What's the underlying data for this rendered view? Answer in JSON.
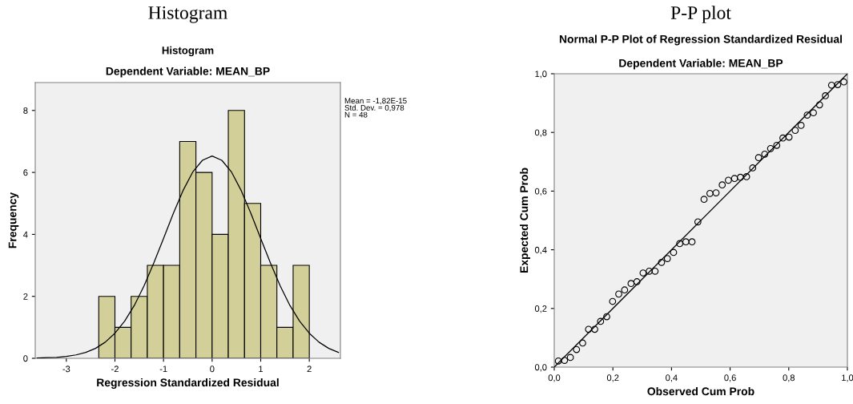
{
  "chart_data": [
    {
      "type": "histogram",
      "title": "Histogram",
      "subtitle": "Dependent Variable: MEAN_BP",
      "xlabel": "Regression Standardized Residual",
      "ylabel": "Frequency",
      "annotations": [
        "Histogram",
        "Mean = -1,82E-15\nStd. Dev. = 0,978\nN = 48"
      ],
      "bins": [
        -2.333,
        -2,
        -1.667,
        -1.333,
        -1,
        -0.667,
        -0.333,
        0,
        0.333,
        0.667,
        1,
        1.333,
        1.667,
        2
      ],
      "values": [
        2,
        1,
        2,
        3,
        3,
        7,
        6,
        4,
        8,
        5,
        3,
        1,
        3
      ],
      "color": "#d3cf99",
      "series": [
        {
          "type": "line",
          "color": "#000000",
          "marker": "none",
          "x": [
            -3.6,
            -3.4,
            -3.2,
            -3.0,
            -2.8,
            -2.6,
            -2.4,
            -2.2,
            -2.0,
            -1.8,
            -1.6,
            -1.4,
            -1.2,
            -1.0,
            -0.8,
            -0.6,
            -0.4,
            -0.2,
            0,
            0.2,
            0.4,
            0.6,
            0.8,
            1.0,
            1.2,
            1.4,
            1.6,
            1.8,
            2.0,
            2.2,
            2.4,
            2.6
          ],
          "values": [
            0.01,
            0.02,
            0.03,
            0.06,
            0.11,
            0.19,
            0.32,
            0.52,
            0.81,
            1.2,
            1.71,
            2.34,
            3.08,
            3.87,
            4.67,
            5.41,
            6.01,
            6.39,
            6.53,
            6.39,
            6.01,
            5.41,
            4.67,
            3.87,
            3.08,
            2.34,
            1.71,
            1.2,
            0.81,
            0.52,
            0.32,
            0.19
          ]
        }
      ],
      "xlim": [
        -3.64,
        2.64
      ],
      "ylim": [
        0,
        8.9
      ],
      "xticks": [
        {
          "value": -3,
          "label": "-3"
        },
        {
          "value": -2,
          "label": "-2"
        },
        {
          "value": -1,
          "label": "-1"
        },
        0,
        1,
        2
      ],
      "yticks": [
        0,
        2,
        4,
        6,
        8
      ],
      "grid": false
    },
    {
      "type": "scatter",
      "title": "Normal P-P Plot of Regression Standardized Residual",
      "subtitle": "Dependent Variable: MEAN_BP",
      "xlabel": "Observed Cum Prob",
      "ylabel": "Expected Cum Prob",
      "annotations": [
        "P-P plot"
      ],
      "marker": "circle",
      "color": "#000000",
      "x": [
        0.014,
        0.035,
        0.055,
        0.076,
        0.097,
        0.117,
        0.138,
        0.158,
        0.179,
        0.199,
        0.22,
        0.24,
        0.262,
        0.282,
        0.303,
        0.324,
        0.344,
        0.366,
        0.386,
        0.407,
        0.428,
        0.449,
        0.47,
        0.49,
        0.511,
        0.531,
        0.552,
        0.573,
        0.594,
        0.615,
        0.635,
        0.656,
        0.677,
        0.697,
        0.718,
        0.738,
        0.759,
        0.78,
        0.801,
        0.822,
        0.842,
        0.863,
        0.884,
        0.905,
        0.925,
        0.946,
        0.967,
        0.988
      ],
      "values": [
        0.021,
        0.023,
        0.033,
        0.06,
        0.082,
        0.129,
        0.129,
        0.156,
        0.172,
        0.224,
        0.249,
        0.263,
        0.285,
        0.291,
        0.321,
        0.327,
        0.327,
        0.357,
        0.37,
        0.391,
        0.421,
        0.427,
        0.427,
        0.495,
        0.572,
        0.592,
        0.594,
        0.621,
        0.637,
        0.643,
        0.647,
        0.649,
        0.679,
        0.714,
        0.726,
        0.745,
        0.756,
        0.781,
        0.784,
        0.807,
        0.824,
        0.859,
        0.867,
        0.894,
        0.925,
        0.961,
        0.963,
        0.972
      ],
      "series": [
        {
          "type": "line",
          "color": "#000000",
          "marker": "none",
          "x": [
            0,
            1
          ],
          "values": [
            0,
            1
          ]
        }
      ],
      "xlim": [
        0,
        1
      ],
      "ylim": [
        0,
        1
      ],
      "xticks": [
        {
          "value": 0,
          "label": "0,0"
        },
        {
          "value": 0.2,
          "label": "0,2"
        },
        {
          "value": 0.4,
          "label": "0,4"
        },
        {
          "value": 0.6,
          "label": "0,6"
        },
        {
          "value": 0.8,
          "label": "0,8"
        },
        {
          "value": 1,
          "label": "1,0"
        }
      ],
      "yticks": [
        {
          "value": 0,
          "label": "0,0"
        },
        {
          "value": 0.2,
          "label": "0,2"
        },
        {
          "value": 0.4,
          "label": "0,4"
        },
        {
          "value": 0.6,
          "label": "0,6"
        },
        {
          "value": 0.8,
          "label": "0,8"
        },
        {
          "value": 1,
          "label": "1,0"
        }
      ],
      "grid": false
    }
  ]
}
